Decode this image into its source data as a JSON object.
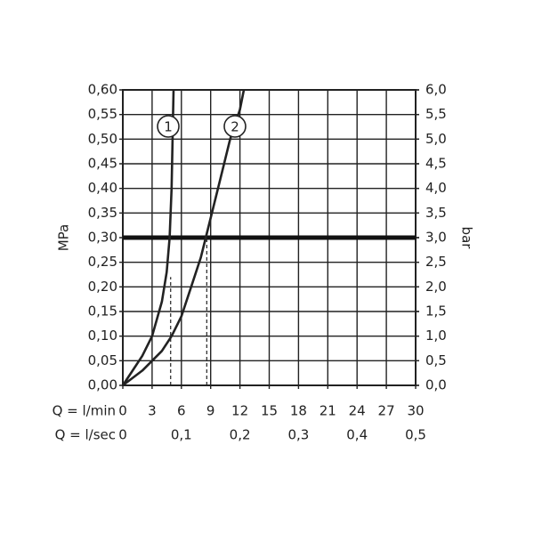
{
  "chart_data": {
    "type": "line",
    "ylabel": "MPa",
    "y2label": "bar",
    "xlabel": "Q = l/min",
    "x2label": "Q = l/sec",
    "xlim": [
      0,
      30
    ],
    "xticks": [
      0,
      3,
      6,
      9,
      12,
      15,
      18,
      21,
      24,
      27,
      30
    ],
    "x2lim": [
      0,
      0.5
    ],
    "x2ticks": [
      0,
      {
        "value": 0.1,
        "label": "0,1"
      },
      {
        "value": 0.2,
        "label": "0,2"
      },
      {
        "value": 0.3,
        "label": "0,3"
      },
      {
        "value": 0.4,
        "label": "0,4"
      },
      {
        "value": 0.5,
        "label": "0,5"
      }
    ],
    "ylim": [
      0,
      0.6
    ],
    "yticks": [
      {
        "value": 0,
        "label": "0,00"
      },
      {
        "value": 0.05,
        "label": "0,05"
      },
      {
        "value": 0.1,
        "label": "0,10"
      },
      {
        "value": 0.15,
        "label": "0,15"
      },
      {
        "value": 0.2,
        "label": "0,20"
      },
      {
        "value": 0.25,
        "label": "0,25"
      },
      {
        "value": 0.3,
        "label": "0,30"
      },
      {
        "value": 0.35,
        "label": "0,35"
      },
      {
        "value": 0.4,
        "label": "0,40"
      },
      {
        "value": 0.45,
        "label": "0,45"
      },
      {
        "value": 0.5,
        "label": "0,50"
      },
      {
        "value": 0.55,
        "label": "0,55"
      },
      {
        "value": 0.6,
        "label": "0,60"
      }
    ],
    "y2lim": [
      0,
      6
    ],
    "y2ticks": [
      {
        "value": 0,
        "label": "0,0"
      },
      {
        "value": 0.5,
        "label": "0,5"
      },
      {
        "value": 1,
        "label": "1,0"
      },
      {
        "value": 1.5,
        "label": "1,5"
      },
      {
        "value": 2,
        "label": "2,0"
      },
      {
        "value": 2.5,
        "label": "2,5"
      },
      {
        "value": 3,
        "label": "3,0"
      },
      {
        "value": 3.5,
        "label": "3,5"
      },
      {
        "value": 4,
        "label": "4,0"
      },
      {
        "value": 4.5,
        "label": "4,5"
      },
      {
        "value": 5,
        "label": "5,0"
      },
      {
        "value": 5.5,
        "label": "5,5"
      },
      {
        "value": 6,
        "label": "6,0"
      }
    ],
    "grid": true,
    "color": "#222222",
    "reference_line": 0.3,
    "guides": [
      {
        "x": 4.9,
        "y": 0.22
      },
      {
        "x": 8.6,
        "y": 0.3
      }
    ],
    "series": [
      {
        "name": "1",
        "color": "#222222",
        "x": [
          0,
          1,
          2,
          3,
          4,
          4.5,
          4.8,
          5,
          5.1,
          5.2
        ],
        "values": [
          0,
          0.03,
          0.06,
          0.1,
          0.17,
          0.23,
          0.3,
          0.4,
          0.5,
          0.6
        ]
      },
      {
        "name": "2",
        "color": "#222222",
        "x": [
          0,
          2,
          4,
          5,
          6,
          7,
          8,
          8.5,
          9,
          10,
          11,
          12,
          12.4
        ],
        "values": [
          0,
          0.03,
          0.07,
          0.1,
          0.14,
          0.2,
          0.26,
          0.3,
          0.34,
          0.42,
          0.5,
          0.56,
          0.6
        ]
      }
    ]
  }
}
